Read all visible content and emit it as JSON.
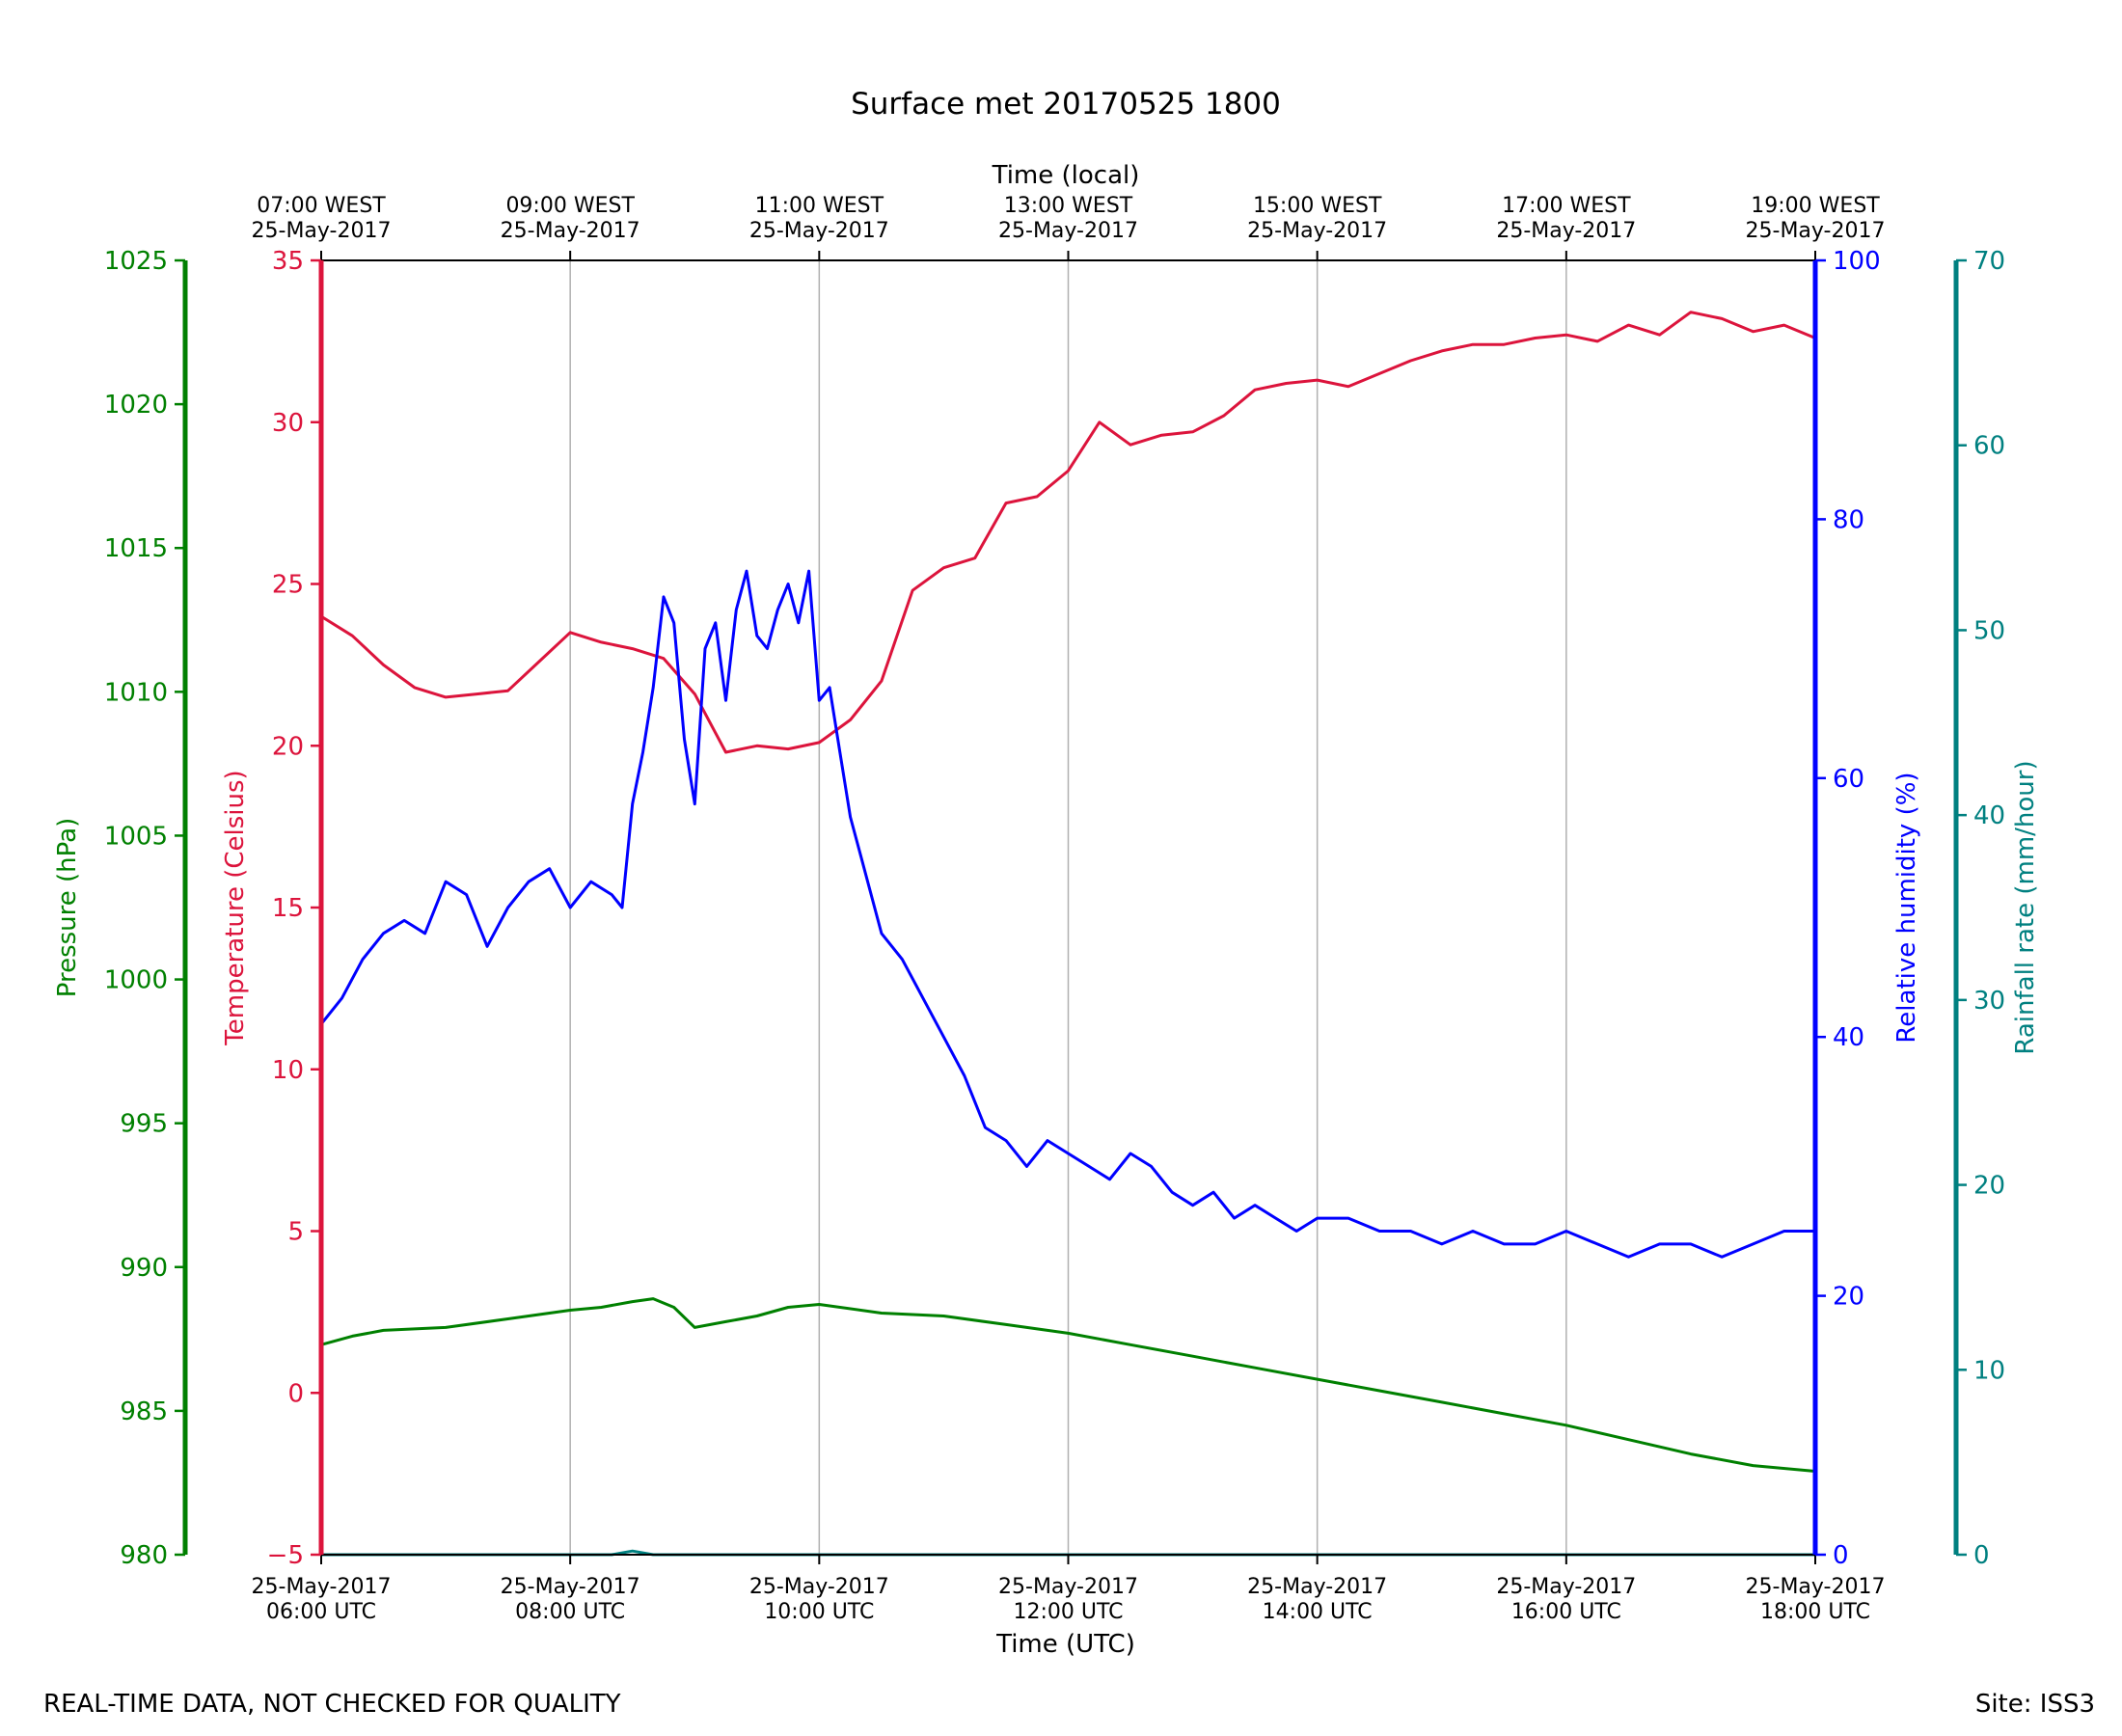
{
  "title": "Surface met 20170525 1800",
  "footer": {
    "left": "REAL-TIME DATA, NOT CHECKED FOR QUALITY",
    "right": "Site: ISS3"
  },
  "colors": {
    "temperature": "#dc143c",
    "pressure": "#008000",
    "humidity": "#0000ff",
    "rainfall": "#008080",
    "grid": "#b0b0b0",
    "frame": "#000000"
  },
  "chart_data": {
    "type": "line",
    "xlabel_bottom": "Time (UTC)",
    "xlabel_top": "Time (local)",
    "xlim": [
      "2017-05-25T06:00Z",
      "2017-05-25T18:00Z"
    ],
    "grid": "vertical lines at bottom tick positions",
    "bottom_ticks": [
      {
        "value": "2017-05-25T06:00Z",
        "line1": "25-May-2017",
        "line2": "06:00 UTC"
      },
      {
        "value": "2017-05-25T08:00Z",
        "line1": "25-May-2017",
        "line2": "08:00 UTC"
      },
      {
        "value": "2017-05-25T10:00Z",
        "line1": "25-May-2017",
        "line2": "10:00 UTC"
      },
      {
        "value": "2017-05-25T12:00Z",
        "line1": "25-May-2017",
        "line2": "12:00 UTC"
      },
      {
        "value": "2017-05-25T14:00Z",
        "line1": "25-May-2017",
        "line2": "14:00 UTC"
      },
      {
        "value": "2017-05-25T16:00Z",
        "line1": "25-May-2017",
        "line2": "16:00 UTC"
      },
      {
        "value": "2017-05-25T18:00Z",
        "line1": "25-May-2017",
        "line2": "18:00 UTC"
      }
    ],
    "top_ticks": [
      {
        "value": "2017-05-25T06:00Z",
        "line1": "07:00 WEST",
        "line2": "25-May-2017"
      },
      {
        "value": "2017-05-25T08:00Z",
        "line1": "09:00 WEST",
        "line2": "25-May-2017"
      },
      {
        "value": "2017-05-25T10:00Z",
        "line1": "11:00 WEST",
        "line2": "25-May-2017"
      },
      {
        "value": "2017-05-25T12:00Z",
        "line1": "13:00 WEST",
        "line2": "25-May-2017"
      },
      {
        "value": "2017-05-25T14:00Z",
        "line1": "15:00 WEST",
        "line2": "25-May-2017"
      },
      {
        "value": "2017-05-25T16:00Z",
        "line1": "17:00 WEST",
        "line2": "25-May-2017"
      },
      {
        "value": "2017-05-25T18:00Z",
        "line1": "19:00 WEST",
        "line2": "25-May-2017"
      }
    ],
    "axes": {
      "pressure": {
        "label": "Pressure (hPa)",
        "ylim": [
          980,
          1025
        ],
        "ticks": [
          980,
          985,
          990,
          995,
          1000,
          1005,
          1010,
          1015,
          1020,
          1025
        ],
        "side": "left-outer"
      },
      "temperature": {
        "label": "Temperature (Celsius)",
        "ylim": [
          -5,
          35
        ],
        "ticks": [
          -5,
          0,
          5,
          10,
          15,
          20,
          25,
          30,
          35
        ],
        "side": "left"
      },
      "humidity": {
        "label": "Relative humidity (%)",
        "ylim": [
          0,
          100
        ],
        "ticks": [
          0,
          20,
          40,
          60,
          80,
          100
        ],
        "side": "right"
      },
      "rainfall": {
        "label": "Rainfall rate (mm/hour)",
        "ylim": [
          0,
          70
        ],
        "ticks": [
          0,
          10,
          20,
          30,
          40,
          50,
          60,
          70
        ],
        "side": "right-outer"
      }
    },
    "series": [
      {
        "axis": "temperature",
        "x": [
          "06:00",
          "06:15",
          "06:30",
          "06:45",
          "07:00",
          "07:15",
          "07:30",
          "07:45",
          "08:00",
          "08:15",
          "08:30",
          "08:45",
          "09:00",
          "09:15",
          "09:30",
          "09:45",
          "10:00",
          "10:15",
          "10:30",
          "10:45",
          "11:00",
          "11:15",
          "11:30",
          "11:45",
          "12:00",
          "12:15",
          "12:30",
          "12:45",
          "13:00",
          "13:15",
          "13:30",
          "13:45",
          "14:00",
          "14:15",
          "14:30",
          "14:45",
          "15:00",
          "15:15",
          "15:30",
          "15:45",
          "16:00",
          "16:15",
          "16:30",
          "16:45",
          "17:00",
          "17:15",
          "17:30",
          "17:45",
          "18:00"
        ],
        "values": [
          24.0,
          23.4,
          22.5,
          21.8,
          21.5,
          21.6,
          21.7,
          22.6,
          23.5,
          23.2,
          23.0,
          22.7,
          21.6,
          19.8,
          20.0,
          19.9,
          20.1,
          20.8,
          22.0,
          24.8,
          25.5,
          25.8,
          27.5,
          27.7,
          28.5,
          30.0,
          29.3,
          29.6,
          29.7,
          30.2,
          31.0,
          31.2,
          31.3,
          31.1,
          31.5,
          31.9,
          32.2,
          32.4,
          32.4,
          32.6,
          32.7,
          32.5,
          33.0,
          32.7,
          33.4,
          33.2,
          32.8,
          33.0,
          32.6
        ]
      },
      {
        "axis": "humidity",
        "x": [
          "06:00",
          "06:10",
          "06:20",
          "06:30",
          "06:40",
          "06:50",
          "07:00",
          "07:10",
          "07:20",
          "07:30",
          "07:40",
          "07:50",
          "08:00",
          "08:10",
          "08:20",
          "08:25",
          "08:30",
          "08:35",
          "08:40",
          "08:45",
          "08:50",
          "08:55",
          "09:00",
          "09:05",
          "09:10",
          "09:15",
          "09:20",
          "09:25",
          "09:30",
          "09:35",
          "09:40",
          "09:45",
          "09:50",
          "09:55",
          "10:00",
          "10:05",
          "10:10",
          "10:15",
          "10:20",
          "10:30",
          "10:40",
          "10:50",
          "11:00",
          "11:10",
          "11:20",
          "11:30",
          "11:40",
          "11:50",
          "12:00",
          "12:10",
          "12:20",
          "12:30",
          "12:40",
          "12:50",
          "13:00",
          "13:10",
          "13:20",
          "13:30",
          "13:40",
          "13:50",
          "14:00",
          "14:15",
          "14:30",
          "14:45",
          "15:00",
          "15:15",
          "15:30",
          "15:45",
          "16:00",
          "16:15",
          "16:30",
          "16:45",
          "17:00",
          "17:15",
          "17:30",
          "17:45",
          "18:00"
        ],
        "values": [
          41,
          43,
          46,
          48,
          49,
          48,
          52,
          51,
          47,
          50,
          52,
          53,
          50,
          52,
          51,
          50,
          58,
          62,
          67,
          74,
          72,
          63,
          58,
          70,
          72,
          66,
          73,
          76,
          71,
          70,
          73,
          75,
          72,
          76,
          66,
          67,
          62,
          57,
          54,
          48,
          46,
          43,
          40,
          37,
          33,
          32,
          30,
          32,
          31,
          30,
          29,
          31,
          30,
          28,
          27,
          28,
          26,
          27,
          26,
          25,
          26,
          26,
          25,
          25,
          24,
          25,
          24,
          24,
          25,
          24,
          23,
          24,
          24,
          23,
          24,
          25,
          25
        ]
      },
      {
        "axis": "pressure",
        "x": [
          "06:00",
          "06:15",
          "06:30",
          "07:00",
          "07:30",
          "08:00",
          "08:15",
          "08:30",
          "08:40",
          "08:50",
          "09:00",
          "09:15",
          "09:30",
          "09:45",
          "10:00",
          "10:30",
          "11:00",
          "11:30",
          "12:00",
          "12:30",
          "13:00",
          "13:30",
          "14:00",
          "14:30",
          "15:00",
          "15:30",
          "16:00",
          "16:30",
          "17:00",
          "17:30",
          "18:00"
        ],
        "values": [
          987.3,
          987.6,
          987.8,
          987.9,
          988.2,
          988.5,
          988.6,
          988.8,
          988.9,
          988.6,
          987.9,
          988.1,
          988.3,
          988.6,
          988.7,
          988.4,
          988.3,
          988.0,
          987.7,
          987.3,
          986.9,
          986.5,
          986.1,
          985.7,
          985.3,
          984.9,
          984.5,
          984.0,
          983.5,
          983.1,
          982.9
        ]
      },
      {
        "axis": "rainfall",
        "x": [
          "06:00",
          "08:20",
          "08:30",
          "08:40",
          "18:00"
        ],
        "values": [
          0.0,
          0.0,
          0.2,
          0.0,
          0.0
        ]
      }
    ]
  }
}
